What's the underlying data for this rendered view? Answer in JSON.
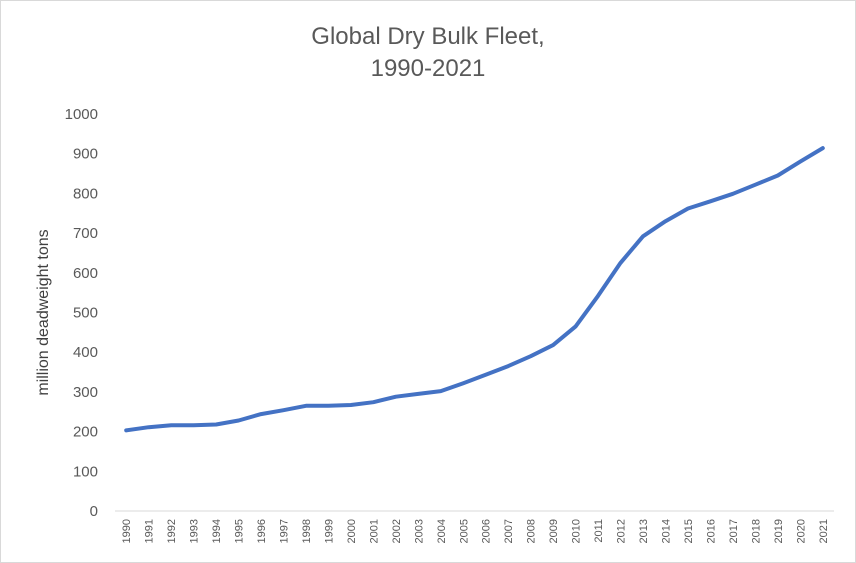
{
  "chart_data": {
    "type": "line",
    "title_line1": "Global Dry Bulk Fleet,",
    "title_line2": "1990-2021",
    "xlabel": "",
    "ylabel": "million deadweight tons",
    "ylim": [
      0,
      1000
    ],
    "yticks": [
      0,
      100,
      200,
      300,
      400,
      500,
      600,
      700,
      800,
      900,
      1000
    ],
    "grid": false,
    "legend": "none",
    "x": [
      "1990",
      "1991",
      "1992",
      "1993",
      "1994",
      "1995",
      "1996",
      "1997",
      "1998",
      "1999",
      "2000",
      "2001",
      "2002",
      "2003",
      "2004",
      "2005",
      "2006",
      "2007",
      "2008",
      "2009",
      "2010",
      "2011",
      "2012",
      "2013",
      "2014",
      "2015",
      "2016",
      "2017",
      "2018",
      "2019",
      "2020",
      "2021"
    ],
    "series": [
      {
        "color": "#4472c4",
        "values": [
          203,
          211,
          216,
          216,
          218,
          228,
          244,
          254,
          265,
          265,
          267,
          274,
          288,
          295,
          302,
          322,
          343,
          365,
          390,
          418,
          465,
          542,
          625,
          692,
          730,
          762,
          780,
          799,
          822,
          845,
          880,
          914
        ]
      }
    ]
  }
}
